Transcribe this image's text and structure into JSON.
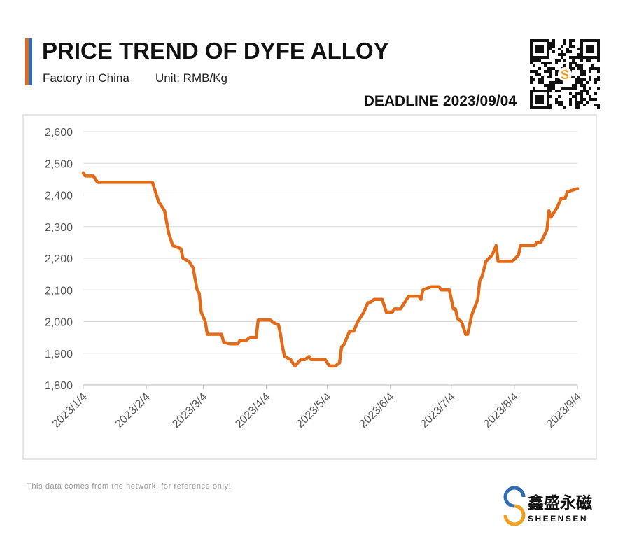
{
  "chart_data": {
    "type": "line",
    "title": "PRICE TREND OF DYFE ALLOY",
    "subtitle": "Factory in China",
    "unit": "Unit: RMB/Kg",
    "deadline": "DEADLINE 2023/09/04",
    "note": "This data comes from the network, for reference only!",
    "brand_cn": "鑫盛永磁",
    "brand_en": "SHEENSEN",
    "xlim": [
      "2023/1/4",
      "2023/9/4"
    ],
    "xticks": [
      "2023/1/4",
      "2023/2/4",
      "2023/3/4",
      "2023/4/4",
      "2023/5/4",
      "2023/6/4",
      "2023/7/4",
      "2023/8/4",
      "2023/9/4"
    ],
    "ylim": [
      1800,
      2600
    ],
    "yticks": [
      {
        "value": 1800,
        "label": "1,800"
      },
      {
        "value": 1900,
        "label": "1,900"
      },
      {
        "value": 2000,
        "label": "2,000"
      },
      {
        "value": 2100,
        "label": "2,100"
      },
      {
        "value": 2200,
        "label": "2,200"
      },
      {
        "value": 2300,
        "label": "2,300"
      },
      {
        "value": 2400,
        "label": "2,400"
      },
      {
        "value": 2500,
        "label": "2,500"
      },
      {
        "value": 2600,
        "label": "2,600"
      }
    ],
    "grid": true,
    "series": [
      {
        "color": "#e26b1a",
        "x": [
          "2023/1/4",
          "2023/1/5",
          "2023/1/9",
          "2023/1/11",
          "2023/2/7",
          "2023/2/10",
          "2023/2/13",
          "2023/2/15",
          "2023/2/17",
          "2023/2/21",
          "2023/2/22",
          "2023/2/25",
          "2023/2/27",
          "2023/3/1",
          "2023/3/2",
          "2023/3/3",
          "2023/3/5",
          "2023/3/6",
          "2023/3/13",
          "2023/3/14",
          "2023/3/17",
          "2023/3/21",
          "2023/3/22",
          "2023/3/25",
          "2023/3/27",
          "2023/3/30",
          "2023/3/31",
          "2023/4/6",
          "2023/4/8",
          "2023/4/10",
          "2023/4/11",
          "2023/4/12",
          "2023/4/13",
          "2023/4/16",
          "2023/4/18",
          "2023/4/21",
          "2023/4/23",
          "2023/4/25",
          "2023/4/26",
          "2023/5/3",
          "2023/5/5",
          "2023/5/8",
          "2023/5/10",
          "2023/5/11",
          "2023/5/12",
          "2023/5/15",
          "2023/5/17",
          "2023/5/19",
          "2023/5/22",
          "2023/5/24",
          "2023/5/25",
          "2023/5/27",
          "2023/5/31",
          "2023/6/2",
          "2023/6/5",
          "2023/6/6",
          "2023/6/9",
          "2023/6/11",
          "2023/6/13",
          "2023/6/18",
          "2023/6/19",
          "2023/6/20",
          "2023/6/24",
          "2023/6/28",
          "2023/6/29",
          "2023/7/3",
          "2023/7/5",
          "2023/7/6",
          "2023/7/7",
          "2023/7/9",
          "2023/7/11",
          "2023/7/12",
          "2023/7/14",
          "2023/7/17",
          "2023/7/18",
          "2023/7/19",
          "2023/7/21",
          "2023/7/24",
          "2023/7/26",
          "2023/7/27",
          "2023/8/3",
          "2023/8/6",
          "2023/8/7",
          "2023/8/14",
          "2023/8/15",
          "2023/8/17",
          "2023/8/20",
          "2023/8/21",
          "2023/8/22",
          "2023/8/25",
          "2023/8/27",
          "2023/8/29",
          "2023/8/30",
          "2023/9/4"
        ],
        "values": [
          2470,
          2460,
          2460,
          2440,
          2440,
          2380,
          2350,
          2280,
          2240,
          2230,
          2200,
          2190,
          2170,
          2100,
          2090,
          2030,
          2000,
          1960,
          1960,
          1935,
          1930,
          1930,
          1940,
          1940,
          1950,
          1950,
          2005,
          2005,
          1995,
          1990,
          1960,
          1920,
          1890,
          1880,
          1860,
          1880,
          1880,
          1890,
          1880,
          1880,
          1860,
          1860,
          1870,
          1920,
          1925,
          1970,
          1970,
          2000,
          2030,
          2060,
          2060,
          2070,
          2070,
          2030,
          2030,
          2040,
          2040,
          2060,
          2080,
          2080,
          2070,
          2100,
          2110,
          2110,
          2100,
          2100,
          2040,
          2040,
          2010,
          2000,
          1960,
          1960,
          2020,
          2070,
          2130,
          2140,
          2190,
          2210,
          2240,
          2190,
          2190,
          2210,
          2240,
          2240,
          2250,
          2250,
          2290,
          2350,
          2330,
          2360,
          2390,
          2390,
          2410,
          2420
        ]
      }
    ]
  }
}
